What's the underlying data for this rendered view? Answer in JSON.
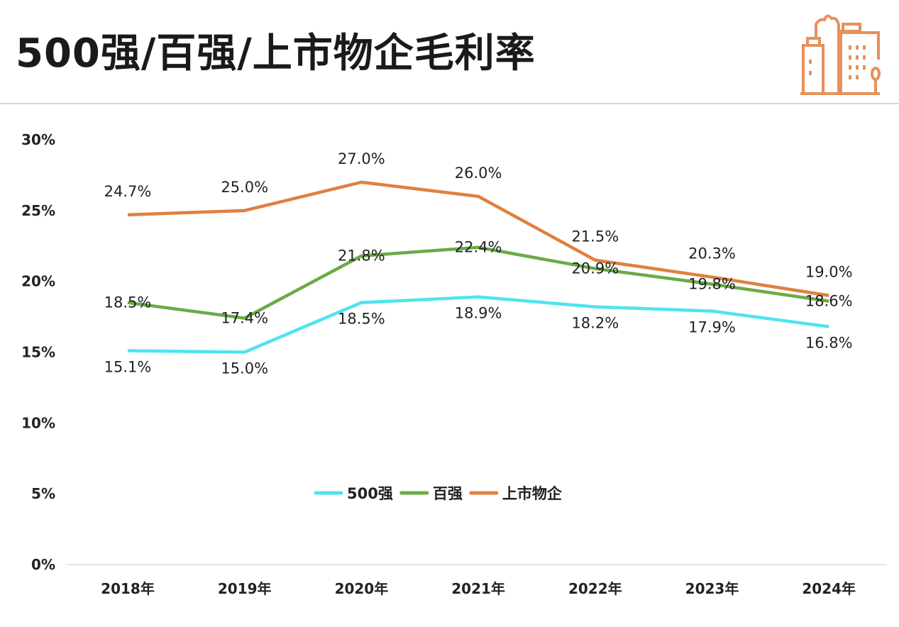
{
  "header": {
    "title": "500强/百强/上市物企毛利率",
    "logo_icon": "city-buildings-icon"
  },
  "colors": {
    "accent": "#e8905a",
    "500强": "#4fe3ee",
    "百强": "#6aab45",
    "上市物企": "#e0803f"
  },
  "chart_data": {
    "type": "line",
    "title": "",
    "xlabel": "",
    "ylabel": "",
    "categories": [
      "2018年",
      "2019年",
      "2020年",
      "2021年",
      "2022年",
      "2023年",
      "2024年"
    ],
    "ylim": [
      0,
      30
    ],
    "yticks": [
      "0%",
      "5%",
      "10%",
      "15%",
      "20%",
      "25%",
      "30%"
    ],
    "ytick_values": [
      0,
      5,
      10,
      15,
      20,
      25,
      30
    ],
    "grid": false,
    "legend": "center",
    "series": [
      {
        "name": "500强",
        "color": "#4fe3ee",
        "values": [
          15.1,
          15.0,
          18.5,
          18.9,
          18.2,
          17.9,
          16.8
        ],
        "labels": [
          "15.1%",
          "15.0%",
          "18.5%",
          "18.9%",
          "18.2%",
          "17.9%",
          "16.8%"
        ]
      },
      {
        "name": "百强",
        "color": "#6aab45",
        "values": [
          18.5,
          17.4,
          21.8,
          22.4,
          20.9,
          19.8,
          18.6
        ],
        "labels": [
          "18.5%",
          "17.4%",
          "21.8%",
          "22.4%",
          "20.9%",
          "19.8%",
          "18.6%"
        ]
      },
      {
        "name": "上市物企",
        "color": "#e0803f",
        "values": [
          24.7,
          25.0,
          27.0,
          26.0,
          21.5,
          20.3,
          19.0
        ],
        "labels": [
          "24.7%",
          "25.0%",
          "27.0%",
          "26.0%",
          "21.5%",
          "20.3%",
          "19.0%"
        ]
      }
    ]
  }
}
